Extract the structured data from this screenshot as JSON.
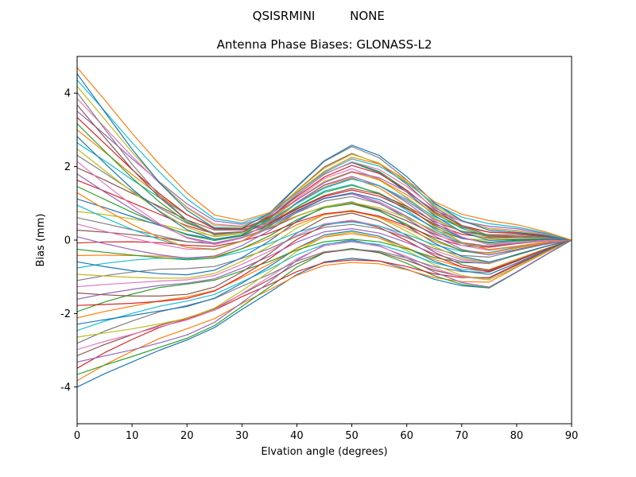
{
  "chart_data": {
    "type": "line",
    "suptitle_left": "QSISRMINI",
    "suptitle_right": "NONE",
    "title": "Antenna Phase Biases: GLONASS-L2",
    "xlabel": "Elvation angle (degrees)",
    "ylabel": "Bias (mm)",
    "xlim": [
      0,
      90
    ],
    "ylim": [
      -5,
      5
    ],
    "xticks": [
      0,
      10,
      20,
      30,
      40,
      50,
      60,
      70,
      80,
      90
    ],
    "yticks": [
      -4,
      -2,
      0,
      2,
      4
    ],
    "grid": false,
    "legend": "none",
    "background": "#ffffff",
    "frame_color": "#000000",
    "line_width": 1.2,
    "n_series": 52,
    "x": [
      0,
      5,
      10,
      15,
      20,
      25,
      30,
      35,
      40,
      45,
      50,
      55,
      60,
      65,
      70,
      75,
      80,
      85,
      90
    ],
    "series_model": "y[k] = a * envelope[k] + b * jitter[k] + wave[k]; envelope = envelope_pos if a >= 0 else envelope_neg; all curves start spread between about -4 and +4.7 mm at 0 degrees, pinch near 0 at ~27 degrees, bump to ~+2.5 near 50 degrees, dip to ~-1.3 near 75 degrees, and converge to 0 at 90 degrees",
    "basis": {
      "wave": [
        0.2,
        0.1,
        0.0,
        -0.1,
        -0.2,
        -0.2,
        0.0,
        0.3,
        0.7,
        1.0,
        1.1,
        0.9,
        0.55,
        0.15,
        -0.15,
        -0.25,
        -0.15,
        -0.05,
        0.0
      ],
      "envelope_pos": [
        1.0,
        0.8,
        0.6,
        0.42,
        0.27,
        0.15,
        0.09,
        0.1,
        0.16,
        0.24,
        0.31,
        0.3,
        0.26,
        0.2,
        0.17,
        0.14,
        0.1,
        0.05,
        0.0
      ],
      "envelope_neg": [
        1.0,
        0.89,
        0.79,
        0.69,
        0.6,
        0.52,
        0.45,
        0.41,
        0.39,
        0.38,
        0.38,
        0.35,
        0.32,
        0.29,
        0.26,
        0.25,
        0.17,
        0.09,
        0.0
      ],
      "jitter": [
        0.0,
        0.2,
        0.35,
        0.45,
        0.45,
        0.35,
        0.2,
        0.0,
        -0.2,
        -0.35,
        -0.4,
        -0.3,
        -0.15,
        0.0,
        0.15,
        0.25,
        0.2,
        0.1,
        0.0
      ]
    },
    "series_params": [
      [
        -4.2,
        0.0
      ],
      [
        -4.03,
        0.45
      ],
      [
        -3.86,
        -0.35
      ],
      [
        -3.69,
        0.6
      ],
      [
        -3.52,
        -0.6
      ],
      [
        -3.35,
        0.2
      ],
      [
        -3.18,
        -0.15
      ],
      [
        -3.01,
        0.5
      ],
      [
        -2.84,
        -0.5
      ],
      [
        -2.66,
        0.3
      ],
      [
        -2.49,
        -0.25
      ],
      [
        -2.32,
        0.1
      ],
      [
        -2.15,
        0.65
      ],
      [
        -1.98,
        -0.45
      ],
      [
        -1.81,
        0.25
      ],
      [
        -1.64,
        -0.65
      ],
      [
        -1.47,
        0.0
      ],
      [
        -1.3,
        0.45
      ],
      [
        -1.13,
        -0.35
      ],
      [
        -0.96,
        0.6
      ],
      [
        -0.79,
        -0.6
      ],
      [
        -0.62,
        0.2
      ],
      [
        -0.45,
        -0.15
      ],
      [
        -0.28,
        0.5
      ],
      [
        -0.11,
        -0.5
      ],
      [
        0.07,
        0.3
      ],
      [
        0.24,
        -0.25
      ],
      [
        0.41,
        0.1
      ],
      [
        0.58,
        0.65
      ],
      [
        0.75,
        -0.45
      ],
      [
        0.92,
        0.25
      ],
      [
        1.09,
        -0.65
      ],
      [
        1.26,
        0.0
      ],
      [
        1.43,
        0.45
      ],
      [
        1.6,
        -0.35
      ],
      [
        1.77,
        0.6
      ],
      [
        1.94,
        -0.6
      ],
      [
        2.11,
        0.2
      ],
      [
        2.28,
        -0.15
      ],
      [
        2.45,
        0.5
      ],
      [
        2.62,
        -0.5
      ],
      [
        2.8,
        0.3
      ],
      [
        2.97,
        -0.25
      ],
      [
        3.14,
        0.1
      ],
      [
        3.31,
        0.65
      ],
      [
        3.48,
        -0.45
      ],
      [
        3.65,
        0.25
      ],
      [
        3.82,
        -0.65
      ],
      [
        3.99,
        0.0
      ],
      [
        4.16,
        0.45
      ],
      [
        4.33,
        -0.35
      ],
      [
        4.5,
        0.6
      ]
    ],
    "palette": [
      "#1f77b4",
      "#ff7f0e",
      "#2ca02c",
      "#d62728",
      "#9467bd",
      "#8c564b",
      "#e377c2",
      "#7f7f7f",
      "#bcbd22",
      "#17becf"
    ]
  }
}
